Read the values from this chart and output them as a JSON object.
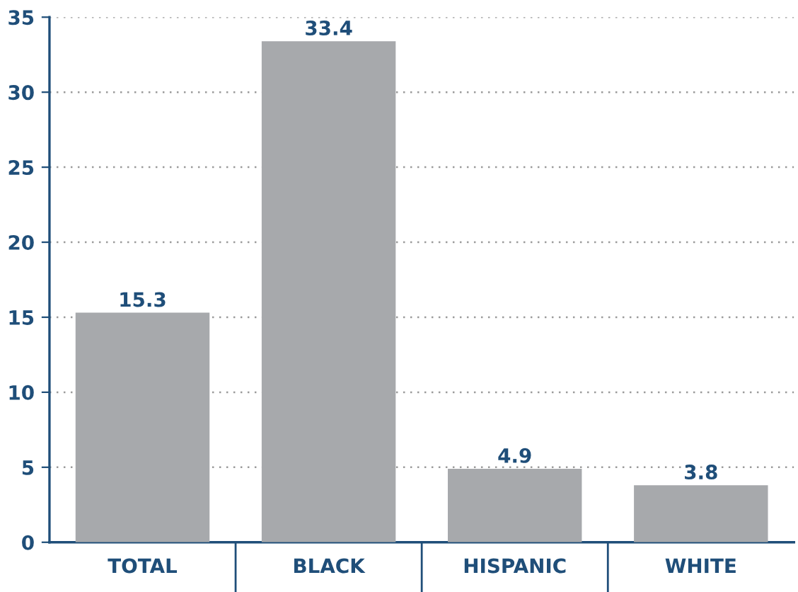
{
  "chart_data": {
    "type": "bar",
    "categories": [
      "TOTAL",
      "BLACK",
      "HISPANIC",
      "WHITE"
    ],
    "values": [
      15.3,
      33.4,
      4.9,
      3.8
    ],
    "color": "#a7a9ac",
    "data_labels": true,
    "ylim": [
      0,
      35
    ],
    "yticks": [
      0,
      5,
      10,
      15,
      20,
      25,
      30,
      35
    ],
    "grid": "y"
  }
}
